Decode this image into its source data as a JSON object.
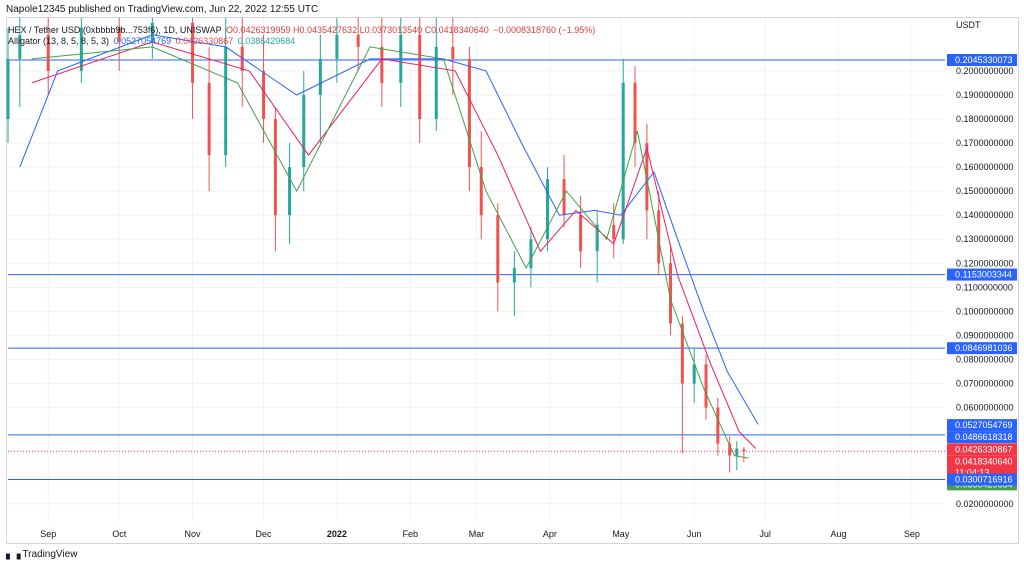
{
  "header": {
    "publisher_line": "Napole12345 published on TradingView.com, Jun 22, 2022 12:55 UTC"
  },
  "legend": {
    "symbol_line": "HEX / Tether USD (0xbbbb9b...753f6), 1D, UNISWAP",
    "ohlc": "O0.0426319959 H0.0435427632 L0.0373013540 C0.0418340640",
    "change": "−0.0008318760 (−1.95%)",
    "indicator_name": "Alligator (13, 8, 5, 8, 5, 3)",
    "jaw": "0.0527054769",
    "teeth": "0.0426330867",
    "lips": "0.0386429684"
  },
  "price_axis": {
    "currency": "USDT",
    "ticks": [
      "0.2000000000",
      "0.1900000000",
      "0.1800000000",
      "0.1700000000",
      "0.1600000000",
      "0.1500000000",
      "0.1400000000",
      "0.1300000000",
      "0.1200000000",
      "0.1100000000",
      "0.1000000000",
      "0.0900000000",
      "0.0800000000",
      "0.0700000000",
      "0.0600000000",
      "0.0200000000"
    ]
  },
  "time_axis": {
    "ticks": [
      "Sep",
      "Oct",
      "Nov",
      "Dec",
      "2022",
      "Feb",
      "Mar",
      "Apr",
      "May",
      "Jun",
      "Jul",
      "Aug",
      "Sep"
    ]
  },
  "price_badges": [
    {
      "label": "0.2045330073",
      "color": "#2962ff"
    },
    {
      "label": "0.1153003344",
      "color": "#2962ff"
    },
    {
      "label": "0.0846981036",
      "color": "#2962ff"
    },
    {
      "label": "0.0527054769",
      "color": "#2962ff"
    },
    {
      "label": "0.0486618318",
      "color": "#2962ff"
    },
    {
      "label": "0.0426330867",
      "color": "#f23645"
    },
    {
      "label": "0.0418340640",
      "color": "#f23645"
    },
    {
      "label": "11:04:13",
      "color": "#f23645"
    },
    {
      "label": "0.0386429684",
      "color": "#43a047"
    },
    {
      "label": "0.0300716916",
      "color": "#2962ff"
    }
  ],
  "footer": {
    "brand": "TradingView"
  },
  "colors": {
    "up": "#26a69a",
    "down": "#ef5350",
    "jaw": "#2962ff",
    "teeth": "#e91e63",
    "lips": "#43a047",
    "hline": "#2962ff"
  },
  "chart_data": {
    "type": "candlestick",
    "title": "",
    "xlabel": "",
    "ylabel": "",
    "ylim": [
      0.012,
      0.222
    ],
    "x_range": [
      "2021-08-15",
      "2022-09-15"
    ],
    "horizontal_levels": [
      0.2045330073,
      0.1153003344,
      0.0846981036,
      0.0486618318,
      0.0300716916
    ],
    "last_price": 0.041834064,
    "candles": [
      {
        "date": "2021-08-15",
        "o": 0.18,
        "h": 0.218,
        "l": 0.17,
        "c": 0.205
      },
      {
        "date": "2021-08-20",
        "o": 0.205,
        "h": 0.222,
        "l": 0.185,
        "c": 0.215
      },
      {
        "date": "2021-09-01",
        "o": 0.215,
        "h": 0.222,
        "l": 0.19,
        "c": 0.2
      },
      {
        "date": "2021-09-15",
        "o": 0.2,
        "h": 0.222,
        "l": 0.195,
        "c": 0.218
      },
      {
        "date": "2021-10-01",
        "o": 0.218,
        "h": 0.222,
        "l": 0.2,
        "c": 0.212
      },
      {
        "date": "2021-10-15",
        "o": 0.212,
        "h": 0.222,
        "l": 0.205,
        "c": 0.22
      },
      {
        "date": "2021-11-01",
        "o": 0.22,
        "h": 0.222,
        "l": 0.18,
        "c": 0.195
      },
      {
        "date": "2021-11-08",
        "o": 0.195,
        "h": 0.21,
        "l": 0.15,
        "c": 0.165
      },
      {
        "date": "2021-11-15",
        "o": 0.165,
        "h": 0.222,
        "l": 0.16,
        "c": 0.21
      },
      {
        "date": "2021-11-22",
        "o": 0.21,
        "h": 0.222,
        "l": 0.185,
        "c": 0.2
      },
      {
        "date": "2021-12-01",
        "o": 0.2,
        "h": 0.215,
        "l": 0.17,
        "c": 0.18
      },
      {
        "date": "2021-12-06",
        "o": 0.18,
        "h": 0.185,
        "l": 0.125,
        "c": 0.14
      },
      {
        "date": "2021-12-12",
        "o": 0.14,
        "h": 0.17,
        "l": 0.128,
        "c": 0.16
      },
      {
        "date": "2021-12-18",
        "o": 0.16,
        "h": 0.2,
        "l": 0.15,
        "c": 0.19
      },
      {
        "date": "2021-12-25",
        "o": 0.19,
        "h": 0.215,
        "l": 0.17,
        "c": 0.205
      },
      {
        "date": "2022-01-01",
        "o": 0.205,
        "h": 0.222,
        "l": 0.195,
        "c": 0.215
      },
      {
        "date": "2022-01-10",
        "o": 0.215,
        "h": 0.222,
        "l": 0.2,
        "c": 0.21
      },
      {
        "date": "2022-01-20",
        "o": 0.21,
        "h": 0.222,
        "l": 0.185,
        "c": 0.195
      },
      {
        "date": "2022-01-28",
        "o": 0.195,
        "h": 0.222,
        "l": 0.185,
        "c": 0.215
      },
      {
        "date": "2022-02-05",
        "o": 0.215,
        "h": 0.222,
        "l": 0.17,
        "c": 0.18
      },
      {
        "date": "2022-02-12",
        "o": 0.18,
        "h": 0.222,
        "l": 0.175,
        "c": 0.21
      },
      {
        "date": "2022-02-19",
        "o": 0.21,
        "h": 0.222,
        "l": 0.19,
        "c": 0.205
      },
      {
        "date": "2022-02-26",
        "o": 0.205,
        "h": 0.21,
        "l": 0.15,
        "c": 0.16
      },
      {
        "date": "2022-03-03",
        "o": 0.16,
        "h": 0.175,
        "l": 0.13,
        "c": 0.14
      },
      {
        "date": "2022-03-10",
        "o": 0.14,
        "h": 0.145,
        "l": 0.1,
        "c": 0.112
      },
      {
        "date": "2022-03-17",
        "o": 0.112,
        "h": 0.125,
        "l": 0.098,
        "c": 0.118
      },
      {
        "date": "2022-03-24",
        "o": 0.118,
        "h": 0.135,
        "l": 0.11,
        "c": 0.13
      },
      {
        "date": "2022-03-31",
        "o": 0.13,
        "h": 0.16,
        "l": 0.125,
        "c": 0.155
      },
      {
        "date": "2022-04-07",
        "o": 0.155,
        "h": 0.165,
        "l": 0.135,
        "c": 0.14
      },
      {
        "date": "2022-04-14",
        "o": 0.14,
        "h": 0.148,
        "l": 0.118,
        "c": 0.125
      },
      {
        "date": "2022-04-21",
        "o": 0.125,
        "h": 0.142,
        "l": 0.112,
        "c": 0.136
      },
      {
        "date": "2022-04-28",
        "o": 0.136,
        "h": 0.145,
        "l": 0.122,
        "c": 0.13
      },
      {
        "date": "2022-05-02",
        "o": 0.13,
        "h": 0.205,
        "l": 0.128,
        "c": 0.195
      },
      {
        "date": "2022-05-07",
        "o": 0.195,
        "h": 0.202,
        "l": 0.16,
        "c": 0.17
      },
      {
        "date": "2022-05-12",
        "o": 0.17,
        "h": 0.178,
        "l": 0.13,
        "c": 0.142
      },
      {
        "date": "2022-05-17",
        "o": 0.142,
        "h": 0.15,
        "l": 0.115,
        "c": 0.12
      },
      {
        "date": "2022-05-22",
        "o": 0.12,
        "h": 0.128,
        "l": 0.09,
        "c": 0.095
      },
      {
        "date": "2022-05-27",
        "o": 0.095,
        "h": 0.098,
        "l": 0.041,
        "c": 0.07
      },
      {
        "date": "2022-06-01",
        "o": 0.07,
        "h": 0.085,
        "l": 0.062,
        "c": 0.078
      },
      {
        "date": "2022-06-06",
        "o": 0.078,
        "h": 0.082,
        "l": 0.055,
        "c": 0.06
      },
      {
        "date": "2022-06-11",
        "o": 0.06,
        "h": 0.064,
        "l": 0.04,
        "c": 0.045
      },
      {
        "date": "2022-06-16",
        "o": 0.045,
        "h": 0.048,
        "l": 0.033,
        "c": 0.04
      },
      {
        "date": "2022-06-19",
        "o": 0.04,
        "h": 0.046,
        "l": 0.034,
        "c": 0.043
      },
      {
        "date": "2022-06-22",
        "o": 0.0426319959,
        "h": 0.0435427632,
        "l": 0.037301354,
        "c": 0.041834064
      }
    ],
    "series": [
      {
        "name": "Jaw",
        "values": [
          {
            "x": "2021-08-20",
            "y": 0.16
          },
          {
            "x": "2021-09-05",
            "y": 0.2
          },
          {
            "x": "2021-10-15",
            "y": 0.215
          },
          {
            "x": "2021-11-15",
            "y": 0.21
          },
          {
            "x": "2021-12-15",
            "y": 0.19
          },
          {
            "x": "2022-01-15",
            "y": 0.205
          },
          {
            "x": "2022-02-15",
            "y": 0.205
          },
          {
            "x": "2022-03-05",
            "y": 0.2
          },
          {
            "x": "2022-03-20",
            "y": 0.17
          },
          {
            "x": "2022-04-05",
            "y": 0.14
          },
          {
            "x": "2022-04-20",
            "y": 0.142
          },
          {
            "x": "2022-05-01",
            "y": 0.14
          },
          {
            "x": "2022-05-15",
            "y": 0.158
          },
          {
            "x": "2022-05-25",
            "y": 0.13
          },
          {
            "x": "2022-06-05",
            "y": 0.1
          },
          {
            "x": "2022-06-15",
            "y": 0.075
          },
          {
            "x": "2022-06-28",
            "y": 0.053
          }
        ]
      },
      {
        "name": "Teeth",
        "values": [
          {
            "x": "2021-08-25",
            "y": 0.195
          },
          {
            "x": "2021-10-15",
            "y": 0.212
          },
          {
            "x": "2021-11-25",
            "y": 0.2
          },
          {
            "x": "2021-12-20",
            "y": 0.165
          },
          {
            "x": "2022-01-20",
            "y": 0.205
          },
          {
            "x": "2022-02-20",
            "y": 0.2
          },
          {
            "x": "2022-03-10",
            "y": 0.165
          },
          {
            "x": "2022-03-28",
            "y": 0.125
          },
          {
            "x": "2022-04-12",
            "y": 0.142
          },
          {
            "x": "2022-04-28",
            "y": 0.128
          },
          {
            "x": "2022-05-12",
            "y": 0.168
          },
          {
            "x": "2022-05-25",
            "y": 0.115
          },
          {
            "x": "2022-06-08",
            "y": 0.078
          },
          {
            "x": "2022-06-20",
            "y": 0.05
          },
          {
            "x": "2022-06-27",
            "y": 0.043
          }
        ]
      },
      {
        "name": "Lips",
        "values": [
          {
            "x": "2021-08-25",
            "y": 0.205
          },
          {
            "x": "2021-10-15",
            "y": 0.21
          },
          {
            "x": "2021-11-20",
            "y": 0.195
          },
          {
            "x": "2021-12-15",
            "y": 0.15
          },
          {
            "x": "2022-01-15",
            "y": 0.21
          },
          {
            "x": "2022-02-15",
            "y": 0.205
          },
          {
            "x": "2022-03-05",
            "y": 0.15
          },
          {
            "x": "2022-03-22",
            "y": 0.118
          },
          {
            "x": "2022-04-08",
            "y": 0.15
          },
          {
            "x": "2022-04-25",
            "y": 0.13
          },
          {
            "x": "2022-05-08",
            "y": 0.175
          },
          {
            "x": "2022-05-22",
            "y": 0.105
          },
          {
            "x": "2022-06-05",
            "y": 0.068
          },
          {
            "x": "2022-06-18",
            "y": 0.04
          },
          {
            "x": "2022-06-24",
            "y": 0.039
          }
        ]
      }
    ]
  }
}
